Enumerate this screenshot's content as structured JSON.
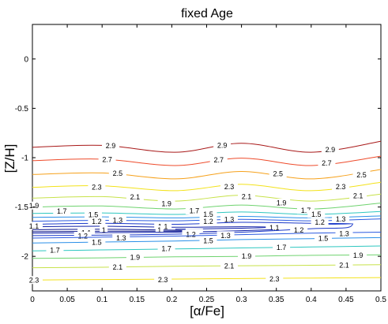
{
  "chart_data": {
    "type": "line",
    "title": "fixed Age",
    "xlabel": "[α/Fe]",
    "ylabel": "[Z/H]",
    "xlim": [
      0,
      0.5
    ],
    "ylim": [
      -2.35,
      0.35
    ],
    "x_ticks": [
      "0",
      "0.05",
      "0.1",
      "0.15",
      "0.2",
      "0.25",
      "0.3",
      "0.35",
      "0.4",
      "0.45",
      "0.5"
    ],
    "y_ticks": [
      "0",
      "-0.5",
      "-1",
      "-1.5",
      "-2"
    ],
    "grid": false,
    "series": [
      {
        "name": "2.9",
        "color": "#a81818",
        "points": [
          [
            0,
            -0.895
          ],
          [
            0.1,
            -0.875
          ],
          [
            0.205,
            -0.945
          ],
          [
            0.3,
            -0.855
          ],
          [
            0.4,
            -0.945
          ],
          [
            0.5,
            -0.835
          ]
        ],
        "labels": [
          [
            0.11,
            -0.877
          ],
          [
            0.27,
            -0.872
          ],
          [
            0.425,
            -0.915
          ]
        ]
      },
      {
        "name": "2.7",
        "color": "#ee4b2b",
        "points": [
          [
            0,
            -1.03
          ],
          [
            0.1,
            -1.015
          ],
          [
            0.205,
            -1.08
          ],
          [
            0.3,
            -1.005
          ],
          [
            0.4,
            -1.08
          ],
          [
            0.5,
            -0.985
          ]
        ],
        "labels": [
          [
            0.105,
            -1.015
          ],
          [
            0.265,
            -1.02
          ],
          [
            0.42,
            -1.05
          ]
        ]
      },
      {
        "name": "2.5",
        "color": "#f6a11b",
        "points": [
          [
            0,
            -1.17
          ],
          [
            0.1,
            -1.155
          ],
          [
            0.205,
            -1.215
          ],
          [
            0.3,
            -1.14
          ],
          [
            0.4,
            -1.215
          ],
          [
            0.5,
            -1.12
          ]
        ],
        "labels": [
          [
            0.12,
            -1.155
          ],
          [
            0.35,
            -1.16
          ],
          [
            0.47,
            -1.17
          ]
        ]
      },
      {
        "name": "2.3",
        "color": "#f3e21a",
        "points": [
          [
            0,
            -1.3
          ],
          [
            0.1,
            -1.285
          ],
          [
            0.205,
            -1.335
          ],
          [
            0.3,
            -1.27
          ],
          [
            0.4,
            -1.335
          ],
          [
            0.5,
            -1.25
          ]
        ],
        "labels": [
          [
            0.09,
            -1.295
          ],
          [
            0.28,
            -1.29
          ],
          [
            0.44,
            -1.29
          ]
        ]
      },
      {
        "name": "2.1",
        "color": "#c7e24a",
        "points": [
          [
            0,
            -1.41
          ],
          [
            0.1,
            -1.395
          ],
          [
            0.205,
            -1.44
          ],
          [
            0.3,
            -1.38
          ],
          [
            0.4,
            -1.44
          ],
          [
            0.5,
            -1.37
          ]
        ],
        "labels": [
          [
            0.145,
            -1.395
          ],
          [
            0.305,
            -1.39
          ],
          [
            0.465,
            -1.385
          ]
        ]
      },
      {
        "name": "1.9",
        "color": "#6fd36f",
        "points": [
          [
            0,
            -1.5
          ],
          [
            0.1,
            -1.49
          ],
          [
            0.205,
            -1.52
          ],
          [
            0.3,
            -1.48
          ],
          [
            0.4,
            -1.52
          ],
          [
            0.5,
            -1.46
          ]
        ],
        "labels": [
          [
            0.0,
            -1.485
          ],
          [
            0.19,
            -1.465
          ],
          [
            0.355,
            -1.455
          ]
        ]
      },
      {
        "name": "1.7",
        "color": "#2ec7c0",
        "points": [
          [
            0,
            -1.565
          ],
          [
            0.1,
            -1.56
          ],
          [
            0.205,
            -1.575
          ],
          [
            0.3,
            -1.55
          ],
          [
            0.4,
            -1.575
          ],
          [
            0.5,
            -1.545
          ]
        ],
        "labels": [
          [
            0.04,
            -1.54
          ],
          [
            0.23,
            -1.535
          ],
          [
            0.39,
            -1.53
          ]
        ]
      },
      {
        "name": "1.5",
        "color": "#2a8fe8",
        "points": [
          [
            0,
            -1.605
          ],
          [
            0.1,
            -1.6
          ],
          [
            0.205,
            -1.61
          ],
          [
            0.3,
            -1.595
          ],
          [
            0.4,
            -1.61
          ],
          [
            0.5,
            -1.59
          ]
        ],
        "labels": [
          [
            0.085,
            -1.575
          ],
          [
            0.25,
            -1.57
          ],
          [
            0.405,
            -1.57
          ]
        ]
      },
      {
        "name": "1.3",
        "color": "#2c5ae0",
        "points": [
          [
            0,
            -1.645
          ],
          [
            0.1,
            -1.635
          ],
          [
            0.205,
            -1.64
          ],
          [
            0.3,
            -1.625
          ],
          [
            0.4,
            -1.64
          ],
          [
            0.5,
            -1.62
          ]
        ],
        "labels": [
          [
            0.12,
            -1.63
          ],
          [
            0.28,
            -1.625
          ],
          [
            0.44,
            -1.62
          ]
        ]
      },
      {
        "name": "1.2",
        "color": "#1b39c9",
        "points": [
          [
            0,
            -1.675
          ],
          [
            0.1,
            -1.665
          ],
          [
            0.205,
            -1.675
          ],
          [
            0.3,
            -1.655
          ],
          [
            0.4,
            -1.665
          ],
          [
            0.46,
            -1.67
          ],
          [
            0.4,
            -1.68
          ]
        ],
        "labels": [
          [
            0.09,
            -1.645
          ],
          [
            0.25,
            -1.645
          ],
          [
            0.41,
            -1.65
          ]
        ]
      },
      {
        "name": "1.1",
        "color": "#1020a8",
        "points": [
          [
            0,
            -1.7
          ],
          [
            0.1,
            -1.695
          ],
          [
            0.205,
            -1.705
          ],
          [
            0.3,
            -1.7
          ],
          [
            0.345,
            -1.705
          ],
          [
            0.3,
            -1.715
          ],
          [
            0.205,
            -1.725
          ]
        ],
        "labels": [
          [
            0.0,
            -1.69
          ],
          [
            0.185,
            -1.695
          ],
          [
            0.345,
            -1.705
          ]
        ]
      },
      {
        "name": "1",
        "color": "#0a148a",
        "points": [
          [
            0,
            -1.73
          ],
          [
            0.1,
            -1.725
          ],
          [
            0.205,
            -1.735
          ],
          [
            0.225,
            -1.74
          ],
          [
            0.205,
            -1.745
          ],
          [
            0.1,
            -1.745
          ],
          [
            0,
            -1.75
          ]
        ],
        "labels": [
          [
            0.1,
            -1.73
          ],
          [
            0.18,
            -1.73
          ]
        ]
      },
      {
        "name": "1.1",
        "color": "#1020a8",
        "points": [
          [
            0,
            -1.765
          ],
          [
            0.1,
            -1.76
          ],
          [
            0.205,
            -1.755
          ],
          [
            0.3,
            -1.74
          ],
          [
            0.345,
            -1.73
          ]
        ],
        "labels": [
          [
            0.075,
            -1.76
          ],
          [
            0.23,
            -1.76
          ]
        ]
      },
      {
        "name": "1.2",
        "color": "#1b39c9",
        "points": [
          [
            0,
            -1.79
          ],
          [
            0.1,
            -1.785
          ],
          [
            0.205,
            -1.775
          ],
          [
            0.3,
            -1.755
          ],
          [
            0.4,
            -1.72
          ],
          [
            0.45,
            -1.71
          ],
          [
            0.46,
            -1.67
          ]
        ],
        "labels": [
          [
            0.07,
            -1.79
          ],
          [
            0.225,
            -1.775
          ],
          [
            0.38,
            -1.73
          ]
        ]
      },
      {
        "name": "1.3",
        "color": "#2c5ae0",
        "points": [
          [
            0,
            -1.815
          ],
          [
            0.1,
            -1.805
          ],
          [
            0.205,
            -1.795
          ],
          [
            0.3,
            -1.78
          ],
          [
            0.4,
            -1.765
          ],
          [
            0.5,
            -1.755
          ]
        ],
        "labels": [
          [
            0.125,
            -1.81
          ],
          [
            0.275,
            -1.785
          ],
          [
            0.445,
            -1.765
          ]
        ]
      },
      {
        "name": "1.5",
        "color": "#2a8fe8",
        "points": [
          [
            0,
            -1.865
          ],
          [
            0.1,
            -1.855
          ],
          [
            0.205,
            -1.845
          ],
          [
            0.3,
            -1.83
          ],
          [
            0.4,
            -1.82
          ],
          [
            0.5,
            -1.81
          ]
        ],
        "labels": [
          [
            0.09,
            -1.855
          ],
          [
            0.25,
            -1.84
          ],
          [
            0.415,
            -1.815
          ]
        ]
      },
      {
        "name": "1.7",
        "color": "#2ec7c0",
        "points": [
          [
            0,
            -1.945
          ],
          [
            0.1,
            -1.935
          ],
          [
            0.205,
            -1.925
          ],
          [
            0.3,
            -1.915
          ],
          [
            0.4,
            -1.905
          ],
          [
            0.5,
            -1.895
          ]
        ],
        "labels": [
          [
            0.03,
            -1.935
          ],
          [
            0.19,
            -1.92
          ],
          [
            0.355,
            -1.905
          ]
        ]
      },
      {
        "name": "1.9",
        "color": "#6fd36f",
        "points": [
          [
            0,
            -2.02
          ],
          [
            0.1,
            -2.015
          ],
          [
            0.205,
            -2.005
          ],
          [
            0.3,
            -2.0
          ],
          [
            0.4,
            -1.99
          ],
          [
            0.5,
            -1.985
          ]
        ],
        "labels": [
          [
            0.145,
            -2.005
          ],
          [
            0.305,
            -1.995
          ],
          [
            0.465,
            -1.985
          ]
        ]
      },
      {
        "name": "2.1",
        "color": "#c7e24a",
        "points": [
          [
            0,
            -2.115
          ],
          [
            0.1,
            -2.11
          ],
          [
            0.205,
            -2.1
          ],
          [
            0.3,
            -2.095
          ],
          [
            0.4,
            -2.09
          ],
          [
            0.5,
            -2.085
          ]
        ],
        "labels": [
          [
            0.12,
            -2.105
          ],
          [
            0.28,
            -2.095
          ],
          [
            0.445,
            -2.085
          ]
        ]
      },
      {
        "name": "2.3",
        "color": "#f3e21a",
        "points": [
          [
            0,
            -2.24
          ],
          [
            0.1,
            -2.235
          ],
          [
            0.205,
            -2.23
          ],
          [
            0.3,
            -2.225
          ],
          [
            0.4,
            -2.22
          ],
          [
            0.5,
            -2.215
          ]
        ],
        "labels": [
          [
            0.0,
            -2.24
          ],
          [
            0.185,
            -2.235
          ],
          [
            0.345,
            -2.225
          ]
        ]
      }
    ]
  }
}
